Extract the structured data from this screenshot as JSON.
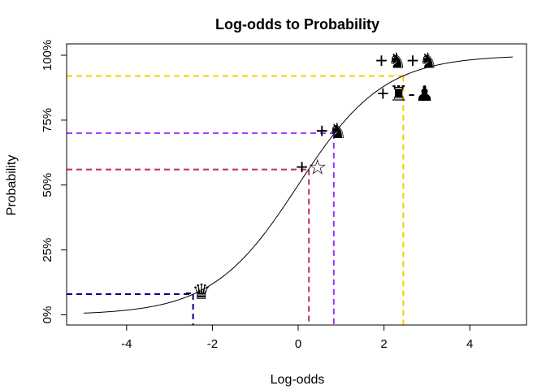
{
  "chart_data": {
    "type": "line",
    "title": "Log-odds to Probability",
    "xlabel": "Log-odds",
    "ylabel": "Probability",
    "xlim": [
      -5,
      5
    ],
    "ylim": [
      0,
      1
    ],
    "x_ticks": [
      -4,
      -2,
      0,
      2,
      4
    ],
    "x_tick_labels": [
      "-4",
      "-2",
      "0",
      "2",
      "4"
    ],
    "y_ticks": [
      0,
      0.25,
      0.5,
      0.75,
      1
    ],
    "y_tick_labels": [
      "0%",
      "25%",
      "50%",
      "75%",
      "100%"
    ],
    "curve": {
      "function": "logistic",
      "x_from": -5,
      "x_to": 5
    },
    "reference_points": [
      {
        "label": "-♛",
        "x": -2.45,
        "y": 0.08,
        "color": "#00008b"
      },
      {
        "label": "+☆",
        "x": 0.25,
        "y": 0.56,
        "color": "#c0304f"
      },
      {
        "label": "+♞",
        "x": 0.83,
        "y": 0.7,
        "color": "#9b30ff"
      },
      {
        "label": "+♞+♞",
        "x": 2.45,
        "y": 0.92,
        "color": "#f0d000"
      }
    ],
    "annotations": [
      {
        "text": "+♜-♟",
        "x": 2.5,
        "y": 0.85
      }
    ],
    "grid": false,
    "legend": "none"
  }
}
